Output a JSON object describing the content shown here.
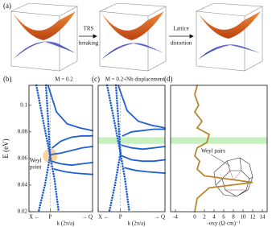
{
  "panel_a": {
    "label": "(a)",
    "arrow_labels": [
      [
        "TRS",
        "breaking"
      ],
      [
        "Lattice",
        "distortion"
      ]
    ]
  },
  "chart_data": [
    {
      "type": "line",
      "label": "(b)",
      "title": "M = 0.2",
      "y_label": "E (eV)",
      "x_label": "k (2π/a)",
      "xlim": [
        -1,
        2
      ],
      "ylim": [
        0.02,
        0.115
      ],
      "xticks": [
        {
          "value": -1,
          "label": "X ←"
        },
        {
          "value": 0,
          "label": "P"
        },
        {
          "value": 2,
          "label": "→ Q"
        }
      ],
      "yticks": [
        0.02,
        0.04,
        0.06,
        0.08,
        0.1
      ],
      "xgrid": true,
      "annotation": [
        "Weyl",
        "point"
      ],
      "series": [
        {
          "color": "#1f5fd0",
          "style": "dotted",
          "x": [
            -0.65,
            -0.35,
            0,
            0.2,
            0.4
          ],
          "values": [
            0.115,
            0.09,
            0.062,
            0.045,
            0.02
          ]
        },
        {
          "color": "#1f5fd0",
          "style": "dotted",
          "x": [
            -0.2,
            -0.1,
            0,
            -0.25,
            -0.55
          ],
          "values": [
            0.115,
            0.09,
            0.062,
            0.04,
            0.02
          ]
        },
        {
          "color": "#1f5fd0",
          "style": "solid",
          "x": [
            -0.1,
            0.3,
            0.8,
            1.4,
            2
          ],
          "values": [
            0.115,
            0.095,
            0.086,
            0.083,
            0.081
          ]
        },
        {
          "color": "#1f5fd0",
          "style": "solid",
          "x": [
            0.1,
            0.5,
            1,
            1.5,
            2
          ],
          "values": [
            0.068,
            0.073,
            0.076,
            0.077,
            0.077
          ]
        },
        {
          "color": "#1f5fd0",
          "style": "solid",
          "x": [
            0.05,
            0.5,
            1,
            1.5,
            2
          ],
          "values": [
            0.063,
            0.064,
            0.066,
            0.068,
            0.069
          ]
        },
        {
          "color": "#1f5fd0",
          "style": "solid",
          "x": [
            0.05,
            0.5,
            1,
            1.5,
            2
          ],
          "values": [
            0.058,
            0.056,
            0.055,
            0.056,
            0.057
          ]
        },
        {
          "color": "#1f5fd0",
          "style": "solid",
          "x": [
            0.2,
            0.7,
            1.2,
            2
          ],
          "values": [
            0.052,
            0.05,
            0.049,
            0.048
          ]
        }
      ]
    },
    {
      "type": "line",
      "label": "(c)",
      "title": "M = 0.2+Nb displacement",
      "x_label": "k (2π/a)",
      "xlim": [
        -1,
        2
      ],
      "ylim": [
        0.02,
        0.115
      ],
      "xticks": [
        {
          "value": -1,
          "label": "X ←"
        },
        {
          "value": 0,
          "label": "P"
        },
        {
          "value": 2,
          "label": "→ Q"
        }
      ],
      "xgrid": true,
      "highlight": [
        0.071,
        0.076
      ],
      "series": [
        {
          "color": "#1f5fd0",
          "style": "dotted",
          "x": [
            -0.6,
            -0.3,
            0,
            0.2,
            0.4
          ],
          "values": [
            0.115,
            0.09,
            0.064,
            0.045,
            0.02
          ]
        },
        {
          "color": "#1f5fd0",
          "style": "dotted",
          "x": [
            -0.2,
            -0.1,
            0,
            -0.25,
            -0.5
          ],
          "values": [
            0.115,
            0.09,
            0.064,
            0.04,
            0.02
          ]
        },
        {
          "color": "#1f5fd0",
          "style": "solid",
          "x": [
            -0.1,
            0.3,
            0.8,
            1.4,
            2
          ],
          "values": [
            0.115,
            0.096,
            0.088,
            0.085,
            0.083
          ]
        },
        {
          "color": "#1f5fd0",
          "style": "solid",
          "x": [
            0.1,
            0.5,
            1,
            1.5,
            2
          ],
          "values": [
            0.077,
            0.08,
            0.081,
            0.082,
            0.082
          ]
        },
        {
          "color": "#1f5fd0",
          "style": "solid",
          "x": [
            0.05,
            0.5,
            1,
            1.5,
            2
          ],
          "values": [
            0.07,
            0.068,
            0.067,
            0.068,
            0.069
          ]
        },
        {
          "color": "#1f5fd0",
          "style": "solid",
          "x": [
            0.05,
            0.5,
            1,
            1.5,
            2
          ],
          "values": [
            0.062,
            0.059,
            0.058,
            0.058,
            0.059
          ]
        },
        {
          "color": "#1f5fd0",
          "style": "solid",
          "x": [
            0.2,
            0.7,
            1.2,
            2
          ],
          "values": [
            0.053,
            0.051,
            0.05,
            0.049
          ]
        }
      ]
    },
    {
      "type": "line",
      "label": "(d)",
      "x_label": "-σxy (Ω·cm)⁻¹",
      "xlim": [
        -5,
        15
      ],
      "ylim": [
        0.02,
        0.115
      ],
      "xticks": [
        -4,
        0,
        2,
        4,
        6,
        8,
        10,
        12,
        14
      ],
      "highlight": [
        0.071,
        0.076
      ],
      "annotation": [
        "Weyl pairs"
      ],
      "series": [
        {
          "color": "#b8862f",
          "style": "solid",
          "x": [
            0.5,
            0,
            0.8,
            0,
            1.5,
            0.5,
            3,
            2.5,
            0.5,
            0,
            1,
            0.5,
            2,
            12,
            3,
            0.5,
            0
          ],
          "values": [
            0.115,
            0.108,
            0.1,
            0.095,
            0.088,
            0.083,
            0.078,
            0.072,
            0.068,
            0.062,
            0.058,
            0.052,
            0.047,
            0.042,
            0.038,
            0.03,
            0.02
          ]
        }
      ]
    }
  ]
}
